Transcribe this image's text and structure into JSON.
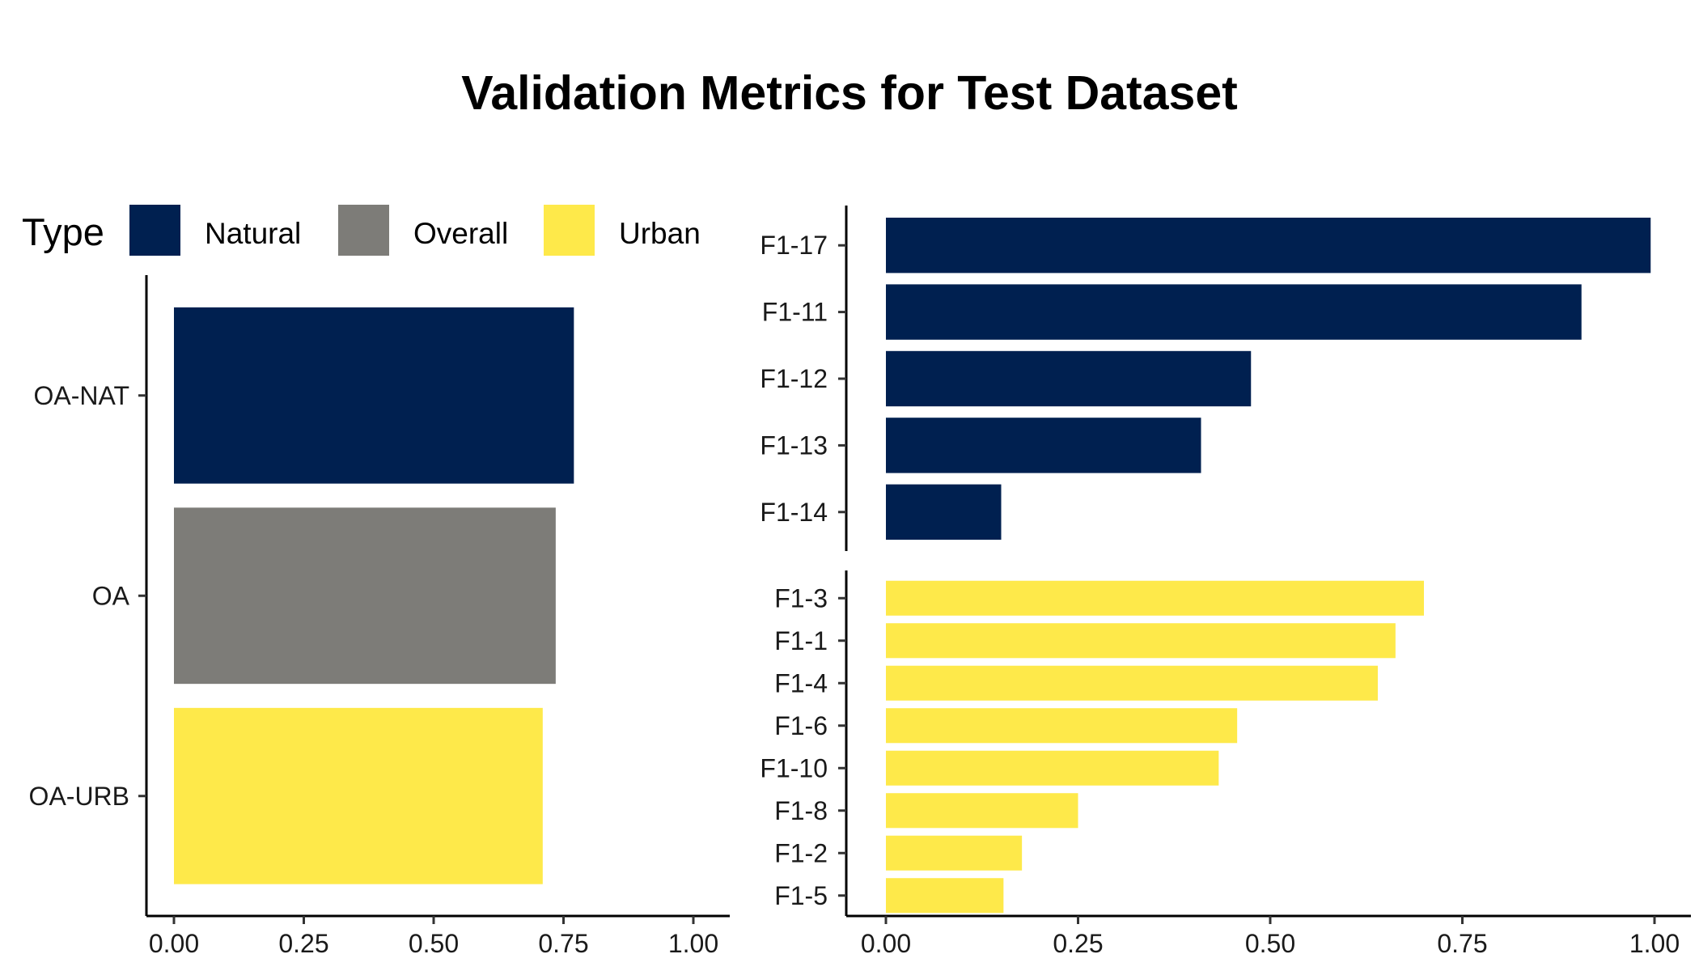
{
  "chart_data": {
    "title": "Validation Metrics for Test Dataset",
    "legend": {
      "title": "Type",
      "placement": "top",
      "entries": [
        {
          "label": "Natural",
          "color": "#002050"
        },
        {
          "label": "Overall",
          "color": "#7d7c78"
        },
        {
          "label": "Urban",
          "color": "#fee94a"
        }
      ]
    },
    "panels": [
      {
        "type": "bar",
        "orientation": "horizontal",
        "categories": [
          "OA-NAT",
          "OA",
          "OA-URB"
        ],
        "values": [
          0.77,
          0.735,
          0.71
        ],
        "types": [
          "Natural",
          "Overall",
          "Urban"
        ],
        "xlim": [
          0,
          1
        ],
        "xticks": [
          "0.00",
          "0.25",
          "0.50",
          "0.75",
          "1.00"
        ]
      },
      {
        "type": "bar",
        "orientation": "horizontal",
        "categories": [
          "F1-17",
          "F1-11",
          "F1-12",
          "F1-13",
          "F1-14"
        ],
        "values": [
          0.995,
          0.905,
          0.475,
          0.41,
          0.15
        ],
        "types": [
          "Natural",
          "Natural",
          "Natural",
          "Natural",
          "Natural"
        ],
        "xlim": [
          0,
          1
        ],
        "xticks": []
      },
      {
        "type": "bar",
        "orientation": "horizontal",
        "categories": [
          "F1-3",
          "F1-1",
          "F1-4",
          "F1-6",
          "F1-10",
          "F1-8",
          "F1-2",
          "F1-5"
        ],
        "values": [
          0.7,
          0.663,
          0.64,
          0.457,
          0.433,
          0.25,
          0.177,
          0.153
        ],
        "types": [
          "Urban",
          "Urban",
          "Urban",
          "Urban",
          "Urban",
          "Urban",
          "Urban",
          "Urban"
        ],
        "xlim": [
          0,
          1
        ],
        "xticks": [
          "0.00",
          "0.25",
          "0.50",
          "0.75",
          "1.00"
        ]
      }
    ]
  }
}
